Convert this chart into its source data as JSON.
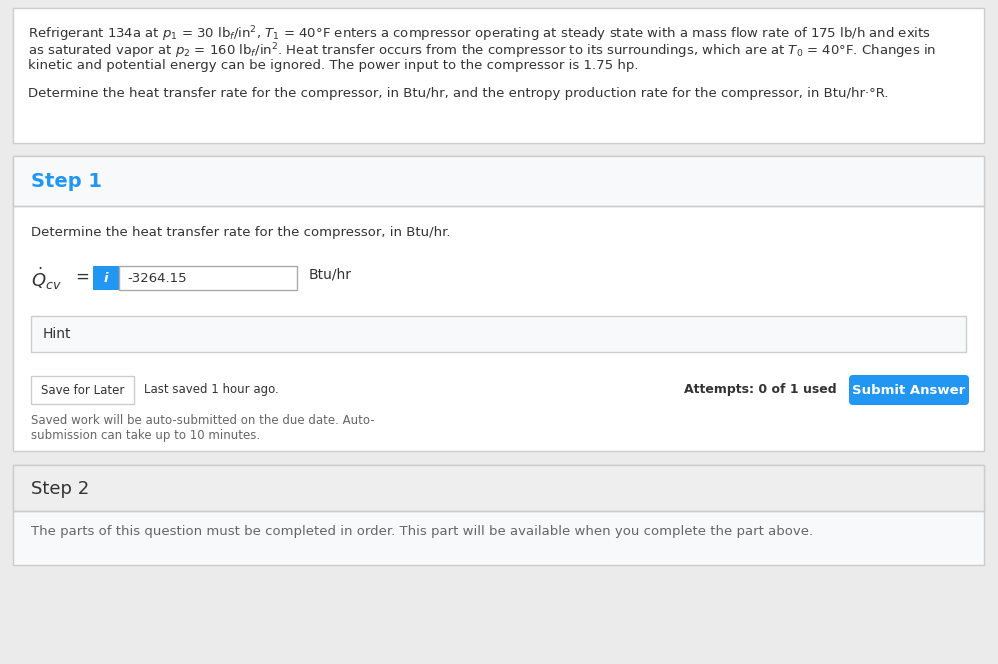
{
  "bg_color": "#ebebeb",
  "white": "#ffffff",
  "light_gray": "#f5f5f5",
  "mid_gray": "#e0e0e0",
  "dark_gray": "#333333",
  "text_gray": "#666666",
  "blue_step": "#2196F3",
  "blue_btn": "#2196F3",
  "blue_info": "#2196F3",
  "border_color": "#cccccc",
  "step1_header_bg": "#f8f9fa",
  "step2_bg": "#f8f9fa",
  "hint_bg": "#f8f9fa",
  "prob_line1": "Refrigerant 134a at $p_1$ = 30 lb$_f$/in$^2$, $T_1$ = 40°F enters a compressor operating at steady state with a mass flow rate of 175 lb/h and exits",
  "prob_line2": "as saturated vapor at $p_2$ = 160 lb$_f$/in$^2$. Heat transfer occurs from the compressor to its surroundings, which are at $T_0$ = 40°F. Changes in",
  "prob_line3": "kinetic and potential energy can be ignored. The power input to the compressor is 1.75 hp.",
  "prob_line4": "Determine the heat transfer rate for the compressor, in Btu/hr, and the entropy production rate for the compressor, in Btu/hr·°R.",
  "step1_label": "Step 1",
  "step1_subtext": "Determine the heat transfer rate for the compressor, in Btu/hr.",
  "value_box": "-3264.15",
  "unit_label": "Btu/hr",
  "hint_label": "Hint",
  "save_btn": "Save for Later",
  "last_saved": "Last saved 1 hour ago.",
  "attempts": "Attempts: 0 of 1 used",
  "submit_btn": "Submit Answer",
  "auto_line1": "Saved work will be auto-submitted on the due date. Auto-",
  "auto_line2": "submission can take up to 10 minutes.",
  "step2_label": "Step 2",
  "step2_subtext": "The parts of this question must be completed in order. This part will be available when you complete the part above."
}
